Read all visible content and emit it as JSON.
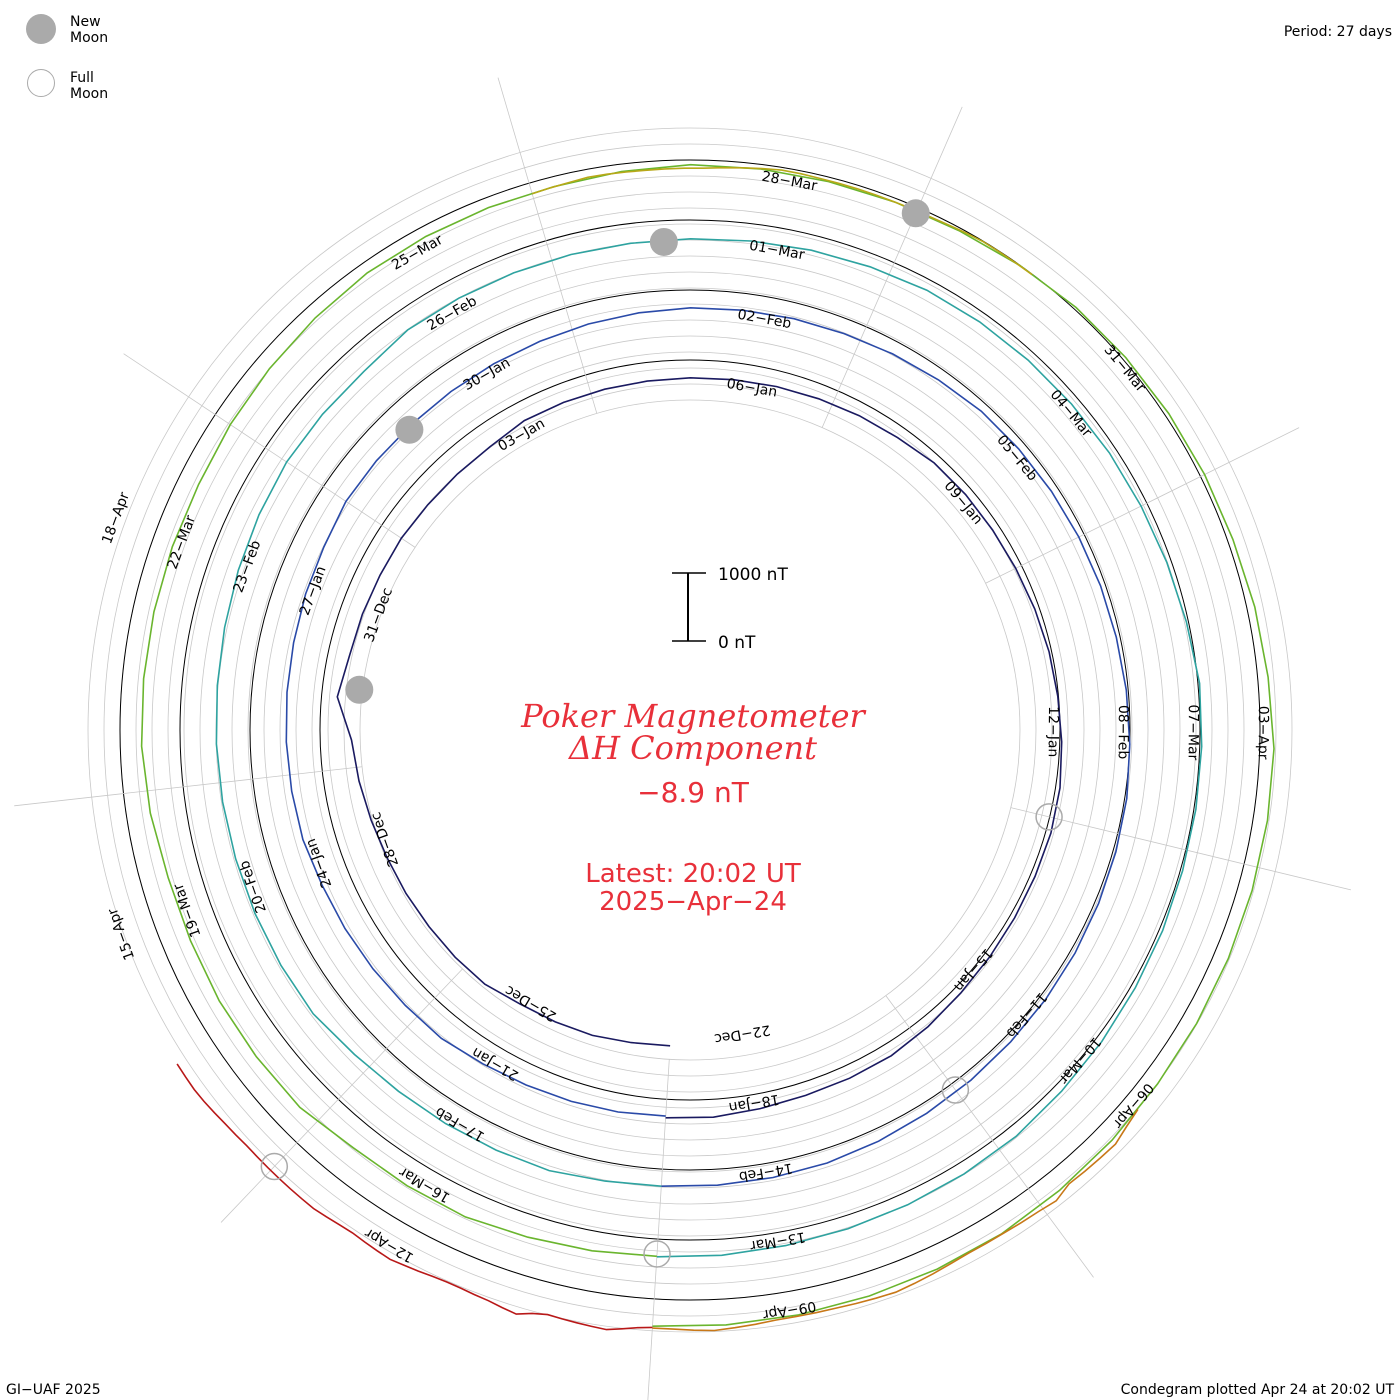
{
  "legend": {
    "new_moon_label": "New Moon",
    "full_moon_label": "Full Moon",
    "new_moon_color": "#aaaaaa",
    "full_moon_color": "#aaaaaa"
  },
  "period_label": "Period: 27 days",
  "center": {
    "title_line1": "Poker Magnetometer",
    "title_line2": "ΔH Component",
    "current_value": "−8.9 nT",
    "latest_line1": "Latest: 20:02 UT",
    "latest_line2": "2025−Apr−24"
  },
  "scale_bar": {
    "top_label": "1000 nT",
    "bottom_label": "0 nT"
  },
  "footer": {
    "left": "GI−UAF 2025",
    "right": "Condegram plotted Apr 24 at 20:02 UT"
  },
  "chart_data": {
    "type": "line",
    "title": "Poker Magnetometer ΔH Component",
    "period_days": 27,
    "start_date": "2024-12-23",
    "end_date": "2025-04-24",
    "spiral_turns": 4.5,
    "series": [
      {
        "color": "#1a1a60",
        "start_date": "2024-12-23",
        "values": [
          60,
          70,
          120,
          100,
          80,
          200,
          150,
          90,
          70,
          60,
          110,
          200,
          300,
          900,
          600,
          500,
          400,
          350,
          250,
          200,
          180,
          300,
          250,
          200,
          150,
          120,
          100,
          90,
          80,
          90,
          100,
          180,
          150,
          100,
          80,
          100,
          130,
          150,
          200,
          250,
          230,
          150,
          100,
          80,
          90,
          150,
          200,
          150,
          100,
          120,
          180,
          150
        ]
      },
      {
        "color": "#2a4aa8",
        "start_date": "2025-01-19",
        "values": [
          80,
          100,
          90,
          80,
          100,
          180,
          120,
          100,
          90,
          80,
          150,
          120,
          100,
          80,
          70,
          90,
          100,
          200,
          150,
          100,
          80,
          70,
          60,
          80,
          100,
          120,
          100,
          90,
          80,
          100,
          130,
          180,
          150,
          120,
          100,
          90,
          80,
          100,
          120,
          150,
          130,
          110,
          100,
          90,
          80,
          90,
          100,
          120,
          140,
          120,
          100,
          90
        ]
      },
      {
        "color": "#2ea3a0",
        "start_date": "2025-02-15",
        "values": [
          90,
          110,
          200,
          150,
          120,
          100,
          150,
          300,
          250,
          200,
          150,
          120,
          100,
          80,
          100,
          150,
          200,
          250,
          200,
          150,
          300,
          250,
          200,
          150,
          100,
          80,
          90,
          120,
          150,
          200,
          180,
          150,
          120,
          100,
          80,
          100,
          150,
          250,
          200,
          150,
          100,
          90,
          80,
          100,
          120,
          180,
          150,
          120,
          100,
          90,
          110,
          120
        ]
      },
      {
        "color": "#6ab52e",
        "start_date": "2025-03-14",
        "values": [
          100,
          150,
          200,
          300,
          250,
          200,
          400,
          350,
          300,
          200,
          150,
          250,
          300,
          250,
          200,
          150,
          100,
          150,
          200,
          250,
          300,
          250,
          200,
          150,
          200,
          250,
          200,
          150,
          120,
          100,
          150,
          200,
          180,
          150,
          120,
          100,
          150,
          200,
          300,
          250,
          200,
          150,
          120,
          100,
          130,
          150,
          180,
          150,
          120,
          110,
          100,
          100
        ]
      },
      {
        "color": "#b8a818",
        "start_date": "2025-03-26",
        "values": [
          120,
          140,
          160,
          200,
          180,
          150,
          130,
          120,
          110,
          100,
          140,
          180,
          220,
          260,
          240,
          200,
          180,
          160,
          140,
          120,
          110,
          100,
          120,
          150,
          180,
          160,
          140,
          130
        ]
      },
      {
        "color": "#c87818",
        "start_date": "2025-04-06",
        "values": [
          100,
          200,
          350,
          300,
          250,
          200,
          400,
          300,
          250,
          200,
          180,
          160,
          200,
          250,
          300,
          350,
          300,
          250,
          200,
          180,
          160,
          150,
          200,
          250,
          300,
          250,
          200,
          180
        ]
      },
      {
        "color": "#b81818",
        "start_date": "2025-04-10",
        "values": [
          150,
          200,
          300,
          400,
          350,
          300,
          250,
          200,
          300,
          500,
          400,
          300,
          250,
          200,
          180,
          200,
          250,
          300,
          350,
          300,
          250,
          200,
          220,
          260,
          300,
          280,
          260,
          240,
          220,
          200,
          180,
          200,
          220,
          260,
          300,
          320,
          300,
          280
        ]
      }
    ],
    "ring_date_labels": [
      "25−Dec",
      "28−Dec",
      "31−Dec",
      "03−Jan",
      "06−Jan",
      "09−Jan",
      "12−Jan",
      "15−Jan",
      "18−Jan",
      "21−Jan",
      "24−Jan",
      "27−Jan",
      "30−Jan",
      "02−Feb",
      "05−Feb",
      "08−Feb",
      "11−Feb",
      "14−Feb",
      "17−Feb",
      "20−Feb",
      "23−Feb",
      "26−Feb",
      "01−Mar",
      "04−Mar",
      "07−Mar",
      "10−Mar",
      "13−Mar",
      "16−Mar",
      "19−Mar",
      "22−Mar",
      "25−Mar",
      "28−Mar",
      "31−Mar",
      "03−Apr",
      "06−Apr",
      "09−Apr",
      "12−Apr",
      "15−Apr",
      "18−Apr",
      "22−Dec"
    ],
    "new_moon_dates": [
      "2024-12-30",
      "2025-01-29",
      "2025-02-28",
      "2025-03-29"
    ],
    "full_moon_dates": [
      "2025-01-13",
      "2025-02-12",
      "2025-03-14",
      "2025-04-13"
    ],
    "scale_nT": 1000
  }
}
